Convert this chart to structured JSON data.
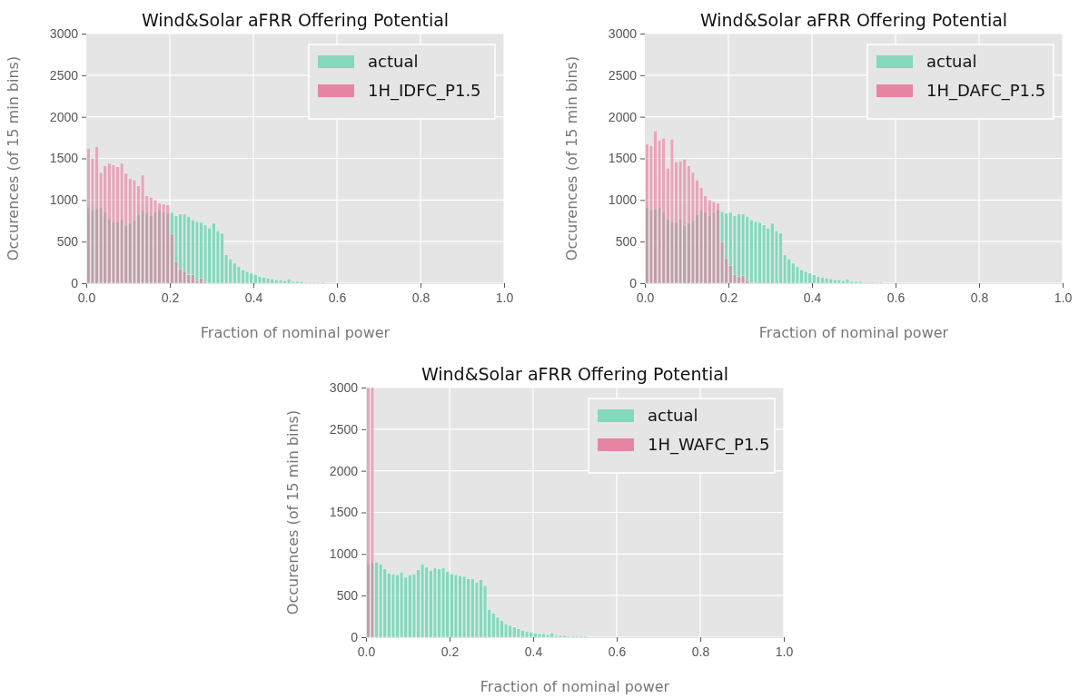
{
  "chart_data": [
    {
      "type": "histogram",
      "title": "Wind&Solar aFRR Offering Potential",
      "xlabel": "Fraction of nominal power",
      "ylabel": "Occurences (of 15 min bins)",
      "bins": [
        0,
        0.01,
        0.02,
        0.03,
        0.04,
        0.05,
        0.06,
        0.07,
        0.08,
        0.09,
        0.1,
        0.11,
        0.12,
        0.13,
        0.14,
        0.15,
        0.16,
        0.17,
        0.18,
        0.19,
        0.2,
        0.21,
        0.22,
        0.23,
        0.24,
        0.25,
        0.26,
        0.27,
        0.28,
        0.29,
        0.3,
        0.31,
        0.32,
        0.33,
        0.34,
        0.35,
        0.36,
        0.37,
        0.38,
        0.39,
        0.4,
        0.41,
        0.42,
        0.43,
        0.44,
        0.45,
        0.46,
        0.47,
        0.48,
        0.49,
        0.5,
        0.51,
        0.52,
        0.53,
        0.54,
        0.55,
        0.56,
        0.57,
        0.58,
        0.59,
        0.6
      ],
      "xlim": [
        0,
        1
      ],
      "ylim": [
        0,
        3000
      ],
      "xticks": [
        {
          "value": 0,
          "label": "0.0"
        },
        {
          "value": 0.2,
          "label": "0.2"
        },
        {
          "value": 0.4,
          "label": "0.4"
        },
        {
          "value": 0.6,
          "label": "0.6"
        },
        {
          "value": 0.8,
          "label": "0.8"
        },
        {
          "value": 1,
          "label": "1.0"
        }
      ],
      "yticks": [
        0,
        500,
        1000,
        1500,
        2000,
        2500,
        3000
      ],
      "grid": true,
      "legend": "top right",
      "series": [
        {
          "name": "actual",
          "color": "#79d6b8",
          "values": [
            910,
            880,
            890,
            910,
            850,
            770,
            740,
            730,
            770,
            690,
            720,
            750,
            820,
            880,
            850,
            810,
            850,
            880,
            860,
            840,
            850,
            810,
            830,
            830,
            800,
            760,
            740,
            730,
            700,
            660,
            720,
            630,
            600,
            340,
            290,
            240,
            200,
            160,
            140,
            120,
            100,
            80,
            70,
            60,
            50,
            40,
            40,
            30,
            50,
            20,
            20,
            20,
            10,
            10,
            10,
            10,
            10,
            0,
            0,
            0
          ]
        },
        {
          "name": "1H_IDFC_P1.5",
          "color": "#e67a9a",
          "values": [
            1620,
            1500,
            1640,
            1330,
            1410,
            1440,
            1420,
            1400,
            1440,
            1320,
            1260,
            1240,
            1170,
            1300,
            1050,
            1030,
            1000,
            960,
            950,
            940,
            590,
            260,
            170,
            150,
            100,
            100,
            30,
            60,
            20,
            0,
            0,
            0,
            0,
            0,
            0,
            0,
            0,
            0,
            0,
            0,
            0,
            0,
            0,
            0,
            0,
            0,
            0,
            0,
            0,
            0,
            0,
            0,
            0,
            0,
            0,
            0,
            0,
            0,
            0,
            0
          ]
        }
      ]
    },
    {
      "type": "histogram",
      "title": "Wind&Solar aFRR Offering Potential",
      "xlabel": "Fraction of nominal power",
      "ylabel": "Occurences (of 15 min bins)",
      "bins": [
        0,
        0.01,
        0.02,
        0.03,
        0.04,
        0.05,
        0.06,
        0.07,
        0.08,
        0.09,
        0.1,
        0.11,
        0.12,
        0.13,
        0.14,
        0.15,
        0.16,
        0.17,
        0.18,
        0.19,
        0.2,
        0.21,
        0.22,
        0.23,
        0.24,
        0.25,
        0.26,
        0.27,
        0.28,
        0.29,
        0.3,
        0.31,
        0.32,
        0.33,
        0.34,
        0.35,
        0.36,
        0.37,
        0.38,
        0.39,
        0.4,
        0.41,
        0.42,
        0.43,
        0.44,
        0.45,
        0.46,
        0.47,
        0.48,
        0.49,
        0.5,
        0.51,
        0.52,
        0.53,
        0.54,
        0.55,
        0.56,
        0.57,
        0.58,
        0.59,
        0.6
      ],
      "xlim": [
        0,
        1
      ],
      "ylim": [
        0,
        3000
      ],
      "xticks": [
        {
          "value": 0,
          "label": "0.0"
        },
        {
          "value": 0.2,
          "label": "0.2"
        },
        {
          "value": 0.4,
          "label": "0.4"
        },
        {
          "value": 0.6,
          "label": "0.6"
        },
        {
          "value": 0.8,
          "label": "0.8"
        },
        {
          "value": 1,
          "label": "1.0"
        }
      ],
      "yticks": [
        0,
        500,
        1000,
        1500,
        2000,
        2500,
        3000
      ],
      "grid": true,
      "legend": "top right",
      "series": [
        {
          "name": "actual",
          "color": "#79d6b8",
          "values": [
            910,
            880,
            890,
            910,
            850,
            770,
            740,
            730,
            770,
            690,
            720,
            750,
            820,
            880,
            850,
            810,
            850,
            880,
            860,
            840,
            850,
            810,
            830,
            830,
            800,
            760,
            740,
            730,
            700,
            660,
            720,
            630,
            600,
            340,
            290,
            240,
            200,
            160,
            140,
            120,
            100,
            80,
            70,
            60,
            50,
            40,
            40,
            30,
            50,
            20,
            20,
            20,
            10,
            10,
            10,
            10,
            10,
            0,
            0,
            0
          ]
        },
        {
          "name": "1H_DAFC_P1.5",
          "color": "#e67a9a",
          "values": [
            1670,
            1650,
            1830,
            1720,
            1740,
            1380,
            1730,
            1460,
            1470,
            1490,
            1410,
            1330,
            1240,
            1150,
            1050,
            1000,
            980,
            960,
            500,
            300,
            210,
            100,
            80,
            90,
            30,
            10,
            10,
            0,
            0,
            0,
            0,
            0,
            0,
            0,
            0,
            0,
            0,
            0,
            0,
            0,
            0,
            0,
            0,
            0,
            0,
            0,
            0,
            0,
            0,
            0,
            0,
            0,
            0,
            0,
            0,
            0,
            0,
            0,
            0,
            0
          ]
        }
      ]
    },
    {
      "type": "histogram",
      "title": "Wind&Solar aFRR Offering Potential",
      "xlabel": "Fraction of nominal power",
      "ylabel": "Occurences (of 15 min bins)",
      "bins": [
        0,
        0.01,
        0.02,
        0.03,
        0.04,
        0.05,
        0.06,
        0.07,
        0.08,
        0.09,
        0.1,
        0.11,
        0.12,
        0.13,
        0.14,
        0.15,
        0.16,
        0.17,
        0.18,
        0.19,
        0.2,
        0.21,
        0.22,
        0.23,
        0.24,
        0.25,
        0.26,
        0.27,
        0.28,
        0.29,
        0.3,
        0.31,
        0.32,
        0.33,
        0.34,
        0.35,
        0.36,
        0.37,
        0.38,
        0.39,
        0.4,
        0.41,
        0.42,
        0.43,
        0.44,
        0.45,
        0.46,
        0.47,
        0.48,
        0.49,
        0.5,
        0.51,
        0.52,
        0.53,
        0.54,
        0.55,
        0.56,
        0.57,
        0.58,
        0.59,
        0.6
      ],
      "xlim": [
        0,
        1
      ],
      "ylim": [
        0,
        3000
      ],
      "xticks": [
        {
          "value": 0,
          "label": "0.0"
        },
        {
          "value": 0.2,
          "label": "0.2"
        },
        {
          "value": 0.4,
          "label": "0.4"
        },
        {
          "value": 0.6,
          "label": "0.6"
        },
        {
          "value": 0.8,
          "label": "0.8"
        },
        {
          "value": 1,
          "label": "1.0"
        }
      ],
      "yticks": [
        0,
        500,
        1000,
        1500,
        2000,
        2500,
        3000
      ],
      "grid": true,
      "legend": "top right",
      "series": [
        {
          "name": "actual",
          "color": "#79d6b8",
          "values": [
            880,
            900,
            900,
            880,
            820,
            770,
            760,
            750,
            780,
            720,
            750,
            760,
            810,
            880,
            840,
            800,
            830,
            820,
            830,
            790,
            760,
            750,
            740,
            730,
            700,
            700,
            660,
            690,
            620,
            330,
            290,
            240,
            200,
            160,
            140,
            120,
            100,
            80,
            70,
            60,
            50,
            40,
            40,
            30,
            50,
            20,
            20,
            20,
            10,
            10,
            10,
            10,
            10,
            0,
            0,
            0,
            0,
            0,
            0,
            0
          ]
        },
        {
          "name": "1H_WAFC_P1.5",
          "color": "#e67a9a",
          "values": [
            3000,
            3000,
            0,
            0,
            0,
            0,
            0,
            0,
            0,
            0,
            0,
            0,
            0,
            0,
            0,
            0,
            0,
            0,
            0,
            0,
            0,
            0,
            0,
            0,
            0,
            0,
            0,
            0,
            0,
            0,
            0,
            0,
            0,
            0,
            0,
            0,
            0,
            0,
            0,
            0,
            0,
            0,
            0,
            0,
            0,
            0,
            0,
            0,
            0,
            0,
            0,
            0,
            0,
            0,
            0,
            0,
            0,
            0,
            0,
            0
          ]
        }
      ]
    }
  ]
}
